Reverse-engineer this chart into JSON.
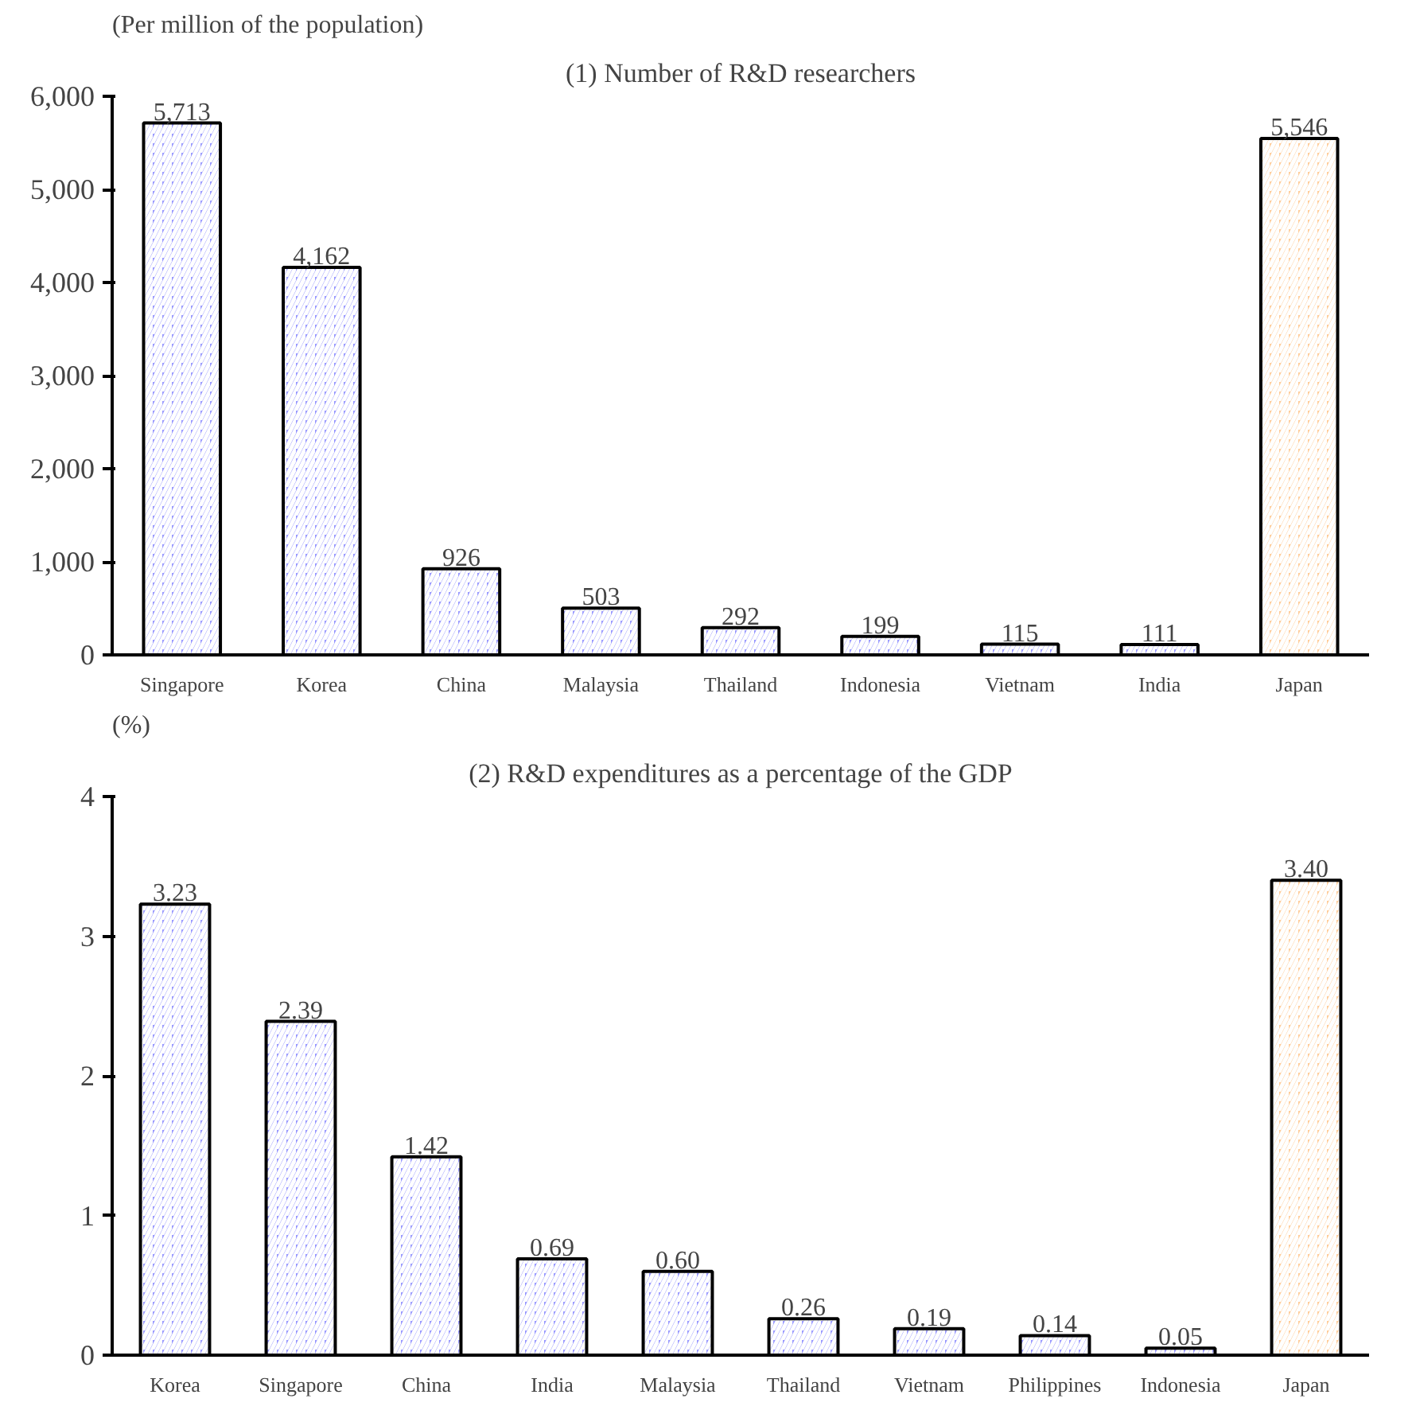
{
  "chart_data": [
    {
      "type": "bar",
      "title": "(1) Number of R&D researchers",
      "ylabel": "(Per million of the population)",
      "categories": [
        "Singapore",
        "Korea",
        "China",
        "Malaysia",
        "Thailand",
        "Indonesia",
        "Vietnam",
        "India",
        "Japan"
      ],
      "values": [
        5713,
        4162,
        926,
        503,
        292,
        199,
        115,
        111,
        5546
      ],
      "value_labels": [
        "5,713",
        "4,162",
        "926",
        "503",
        "292",
        "199",
        "115",
        "111",
        "5,546"
      ],
      "colors": [
        "#9999ff",
        "#9999ff",
        "#9999ff",
        "#9999ff",
        "#9999ff",
        "#9999ff",
        "#9999ff",
        "#9999ff",
        "#ffcc99"
      ],
      "ylim": [
        0,
        6000
      ],
      "yticks": [
        0,
        {
          "value": 1000,
          "label": "1,000"
        },
        {
          "value": 2000,
          "label": "2,000"
        },
        {
          "value": 3000,
          "label": "3,000"
        },
        {
          "value": 4000,
          "label": "4,000"
        },
        {
          "value": 5000,
          "label": "5,000"
        },
        {
          "value": 6000,
          "label": "6,000"
        }
      ],
      "grid": false
    },
    {
      "type": "bar",
      "title": "(2) R&D expenditures as a percentage of the GDP",
      "ylabel": "(%)",
      "categories": [
        "Korea",
        "Singapore",
        "China",
        "India",
        "Malaysia",
        "Thailand",
        "Vietnam",
        "Philippines",
        "Indonesia",
        "Japan"
      ],
      "values": [
        3.23,
        2.39,
        1.42,
        0.69,
        0.6,
        0.26,
        0.19,
        0.14,
        0.05,
        3.4
      ],
      "value_labels": [
        "3.23",
        "2.39",
        "1.42",
        "0.69",
        "0.60",
        "0.26",
        "0.19",
        "0.14",
        "0.05",
        "3.40"
      ],
      "colors": [
        "#9999ff",
        "#9999ff",
        "#9999ff",
        "#9999ff",
        "#9999ff",
        "#9999ff",
        "#9999ff",
        "#9999ff",
        "#9999ff",
        "#ffcc99"
      ],
      "ylim": [
        0,
        4
      ],
      "yticks": [
        0,
        1,
        2,
        3,
        4
      ],
      "grid": false
    }
  ]
}
